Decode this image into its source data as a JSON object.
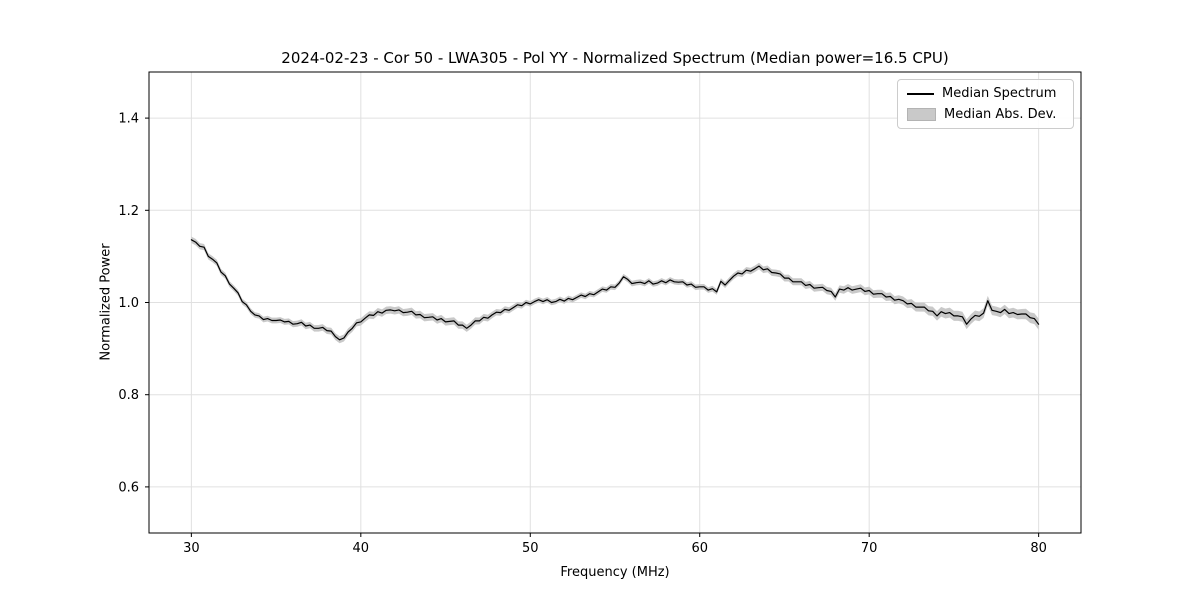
{
  "style": {
    "background": "#ffffff",
    "line_color": "#000000",
    "band_color": "#c9c9c9",
    "grid_color": "#e0e0e0",
    "frame_color": "#000000",
    "text_color": "#000000",
    "legend_border_color": "#cccccc"
  },
  "chart_data": {
    "type": "line",
    "title": "2024-02-23 - Cor 50 - LWA305 - Pol YY - Normalized Spectrum (Median power=16.5 CPU)",
    "xlabel": "Frequency (MHz)",
    "ylabel": "Normalized Power",
    "xlim": [
      27.5,
      82.5
    ],
    "ylim": [
      0.5,
      1.5
    ],
    "xticks": [
      30,
      40,
      50,
      60,
      70,
      80
    ],
    "yticks": [
      0.6,
      0.8,
      1.0,
      1.2,
      1.4
    ],
    "grid": true,
    "legend_position": "upper right",
    "series": [
      {
        "name": "Median Spectrum",
        "type": "line",
        "color": "#000000",
        "x": [
          30,
          30.25,
          30.5,
          30.75,
          31,
          31.25,
          31.5,
          31.75,
          32,
          32.25,
          32.5,
          32.75,
          33,
          33.25,
          33.5,
          33.75,
          34,
          34.25,
          34.5,
          34.75,
          35,
          35.25,
          35.5,
          35.75,
          36,
          36.25,
          36.5,
          36.75,
          37,
          37.25,
          37.5,
          37.75,
          38,
          38.25,
          38.5,
          38.75,
          39,
          39.25,
          39.5,
          39.75,
          40,
          40.25,
          40.5,
          40.75,
          41,
          41.25,
          41.5,
          41.75,
          42,
          42.25,
          42.5,
          42.75,
          43,
          43.25,
          43.5,
          43.75,
          44,
          44.25,
          44.5,
          44.75,
          45,
          45.25,
          45.5,
          45.75,
          46,
          46.25,
          46.5,
          46.75,
          47,
          47.25,
          47.5,
          47.75,
          48,
          48.25,
          48.5,
          48.75,
          49,
          49.25,
          49.5,
          49.75,
          50,
          50.25,
          50.5,
          50.75,
          51,
          51.25,
          51.5,
          51.75,
          52,
          52.25,
          52.5,
          52.75,
          53,
          53.25,
          53.5,
          53.75,
          54,
          54.25,
          54.5,
          54.75,
          55,
          55.25,
          55.5,
          55.75,
          56,
          56.25,
          56.5,
          56.75,
          57,
          57.25,
          57.5,
          57.75,
          58,
          58.25,
          58.5,
          58.75,
          59,
          59.25,
          59.5,
          59.75,
          60,
          60.25,
          60.5,
          60.75,
          61,
          61.25,
          61.5,
          61.75,
          62,
          62.25,
          62.5,
          62.75,
          63,
          63.25,
          63.5,
          63.75,
          64,
          64.25,
          64.5,
          64.75,
          65,
          65.25,
          65.5,
          65.75,
          66,
          66.25,
          66.5,
          66.75,
          67,
          67.25,
          67.5,
          67.75,
          68,
          68.25,
          68.5,
          68.75,
          69,
          69.25,
          69.5,
          69.75,
          70,
          70.25,
          70.5,
          70.75,
          71,
          71.25,
          71.5,
          71.75,
          72,
          72.25,
          72.5,
          72.75,
          73,
          73.25,
          73.5,
          73.75,
          74,
          74.25,
          74.5,
          74.75,
          75,
          75.25,
          75.5,
          75.75,
          76,
          76.25,
          76.5,
          76.75,
          77,
          77.25,
          77.5,
          77.75,
          78,
          78.25,
          78.5,
          78.75,
          79,
          79.25,
          79.5,
          79.75,
          80
        ],
        "y": [
          1.136,
          1.131,
          1.122,
          1.12,
          1.1,
          1.094,
          1.086,
          1.066,
          1.058,
          1.04,
          1.031,
          1.021,
          1.002,
          0.995,
          0.981,
          0.973,
          0.971,
          0.963,
          0.965,
          0.961,
          0.961,
          0.962,
          0.958,
          0.959,
          0.953,
          0.954,
          0.957,
          0.949,
          0.951,
          0.944,
          0.944,
          0.946,
          0.939,
          0.938,
          0.926,
          0.919,
          0.923,
          0.936,
          0.944,
          0.956,
          0.958,
          0.966,
          0.973,
          0.972,
          0.98,
          0.977,
          0.983,
          0.984,
          0.982,
          0.984,
          0.978,
          0.979,
          0.981,
          0.973,
          0.974,
          0.967,
          0.968,
          0.969,
          0.962,
          0.965,
          0.958,
          0.959,
          0.96,
          0.951,
          0.951,
          0.944,
          0.951,
          0.96,
          0.96,
          0.968,
          0.966,
          0.973,
          0.979,
          0.978,
          0.985,
          0.983,
          0.989,
          0.995,
          0.993,
          1.0,
          0.997,
          1.002,
          1.006,
          1.002,
          1.006,
          1.0,
          1.002,
          1.007,
          1.003,
          1.009,
          1.006,
          1.011,
          1.016,
          1.013,
          1.019,
          1.017,
          1.023,
          1.029,
          1.027,
          1.034,
          1.033,
          1.042,
          1.056,
          1.05,
          1.041,
          1.043,
          1.044,
          1.041,
          1.047,
          1.04,
          1.042,
          1.047,
          1.043,
          1.049,
          1.045,
          1.044,
          1.045,
          1.038,
          1.04,
          1.033,
          1.034,
          1.034,
          1.027,
          1.03,
          1.023,
          1.046,
          1.038,
          1.048,
          1.057,
          1.064,
          1.062,
          1.07,
          1.068,
          1.073,
          1.079,
          1.071,
          1.073,
          1.065,
          1.064,
          1.062,
          1.053,
          1.053,
          1.045,
          1.045,
          1.045,
          1.037,
          1.039,
          1.031,
          1.032,
          1.033,
          1.026,
          1.024,
          1.012,
          1.029,
          1.027,
          1.032,
          1.027,
          1.029,
          1.031,
          1.024,
          1.026,
          1.018,
          1.019,
          1.019,
          1.012,
          1.013,
          1.005,
          1.007,
          1.004,
          0.997,
          0.998,
          0.99,
          0.99,
          0.99,
          0.982,
          0.981,
          0.971,
          0.98,
          0.976,
          0.978,
          0.971,
          0.971,
          0.969,
          0.953,
          0.964,
          0.972,
          0.97,
          0.977,
          1.004,
          0.983,
          0.981,
          0.978,
          0.985,
          0.976,
          0.978,
          0.974,
          0.975,
          0.975,
          0.967,
          0.965,
          0.953
        ]
      },
      {
        "name": "Median Abs. Dev.",
        "type": "band",
        "color": "#c9c9c9",
        "around": "Median Spectrum",
        "halfwidth_x": [
          30,
          34,
          40,
          46,
          50,
          55,
          60,
          63,
          68,
          72,
          75,
          78,
          80
        ],
        "halfwidth": [
          0.007,
          0.006,
          0.008,
          0.008,
          0.006,
          0.006,
          0.006,
          0.007,
          0.008,
          0.009,
          0.011,
          0.01,
          0.012
        ]
      }
    ]
  }
}
